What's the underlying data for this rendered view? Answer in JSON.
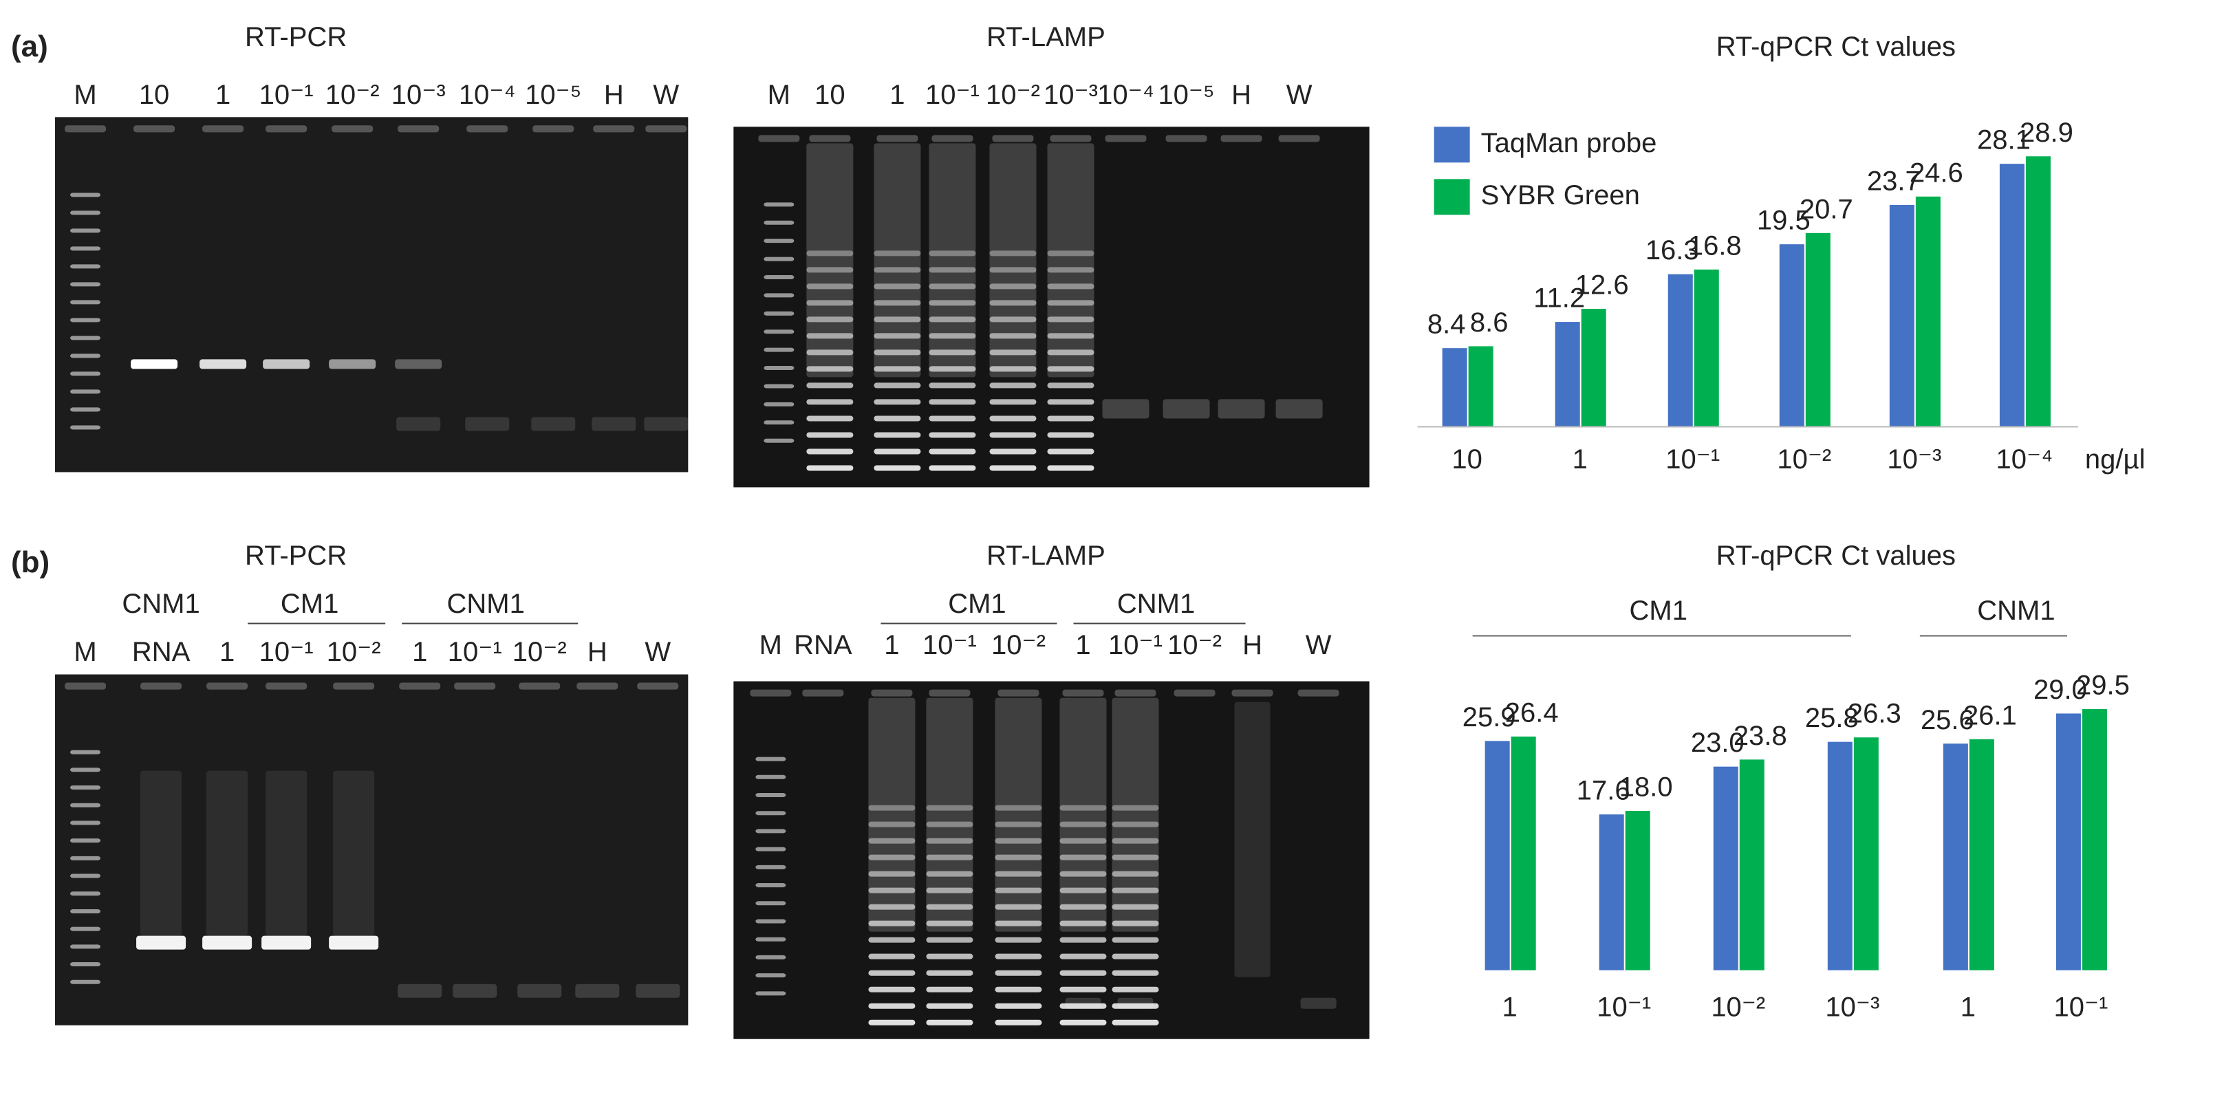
{
  "panels": [
    {
      "label": "(a)",
      "gels": [
        {
          "title": "RT-PCR",
          "lanes": [
            "M",
            "10",
            "1",
            "10⁻¹",
            "10⁻²",
            "10⁻³",
            "10⁻⁴",
            "10⁻⁵",
            "H",
            "W"
          ]
        },
        {
          "title": "RT-LAMP",
          "lanes": [
            "M",
            "10",
            "1",
            "10⁻¹",
            "10⁻²",
            "10⁻³",
            "10⁻⁴",
            "10⁻⁵",
            "H",
            "W"
          ]
        }
      ]
    },
    {
      "label": "(b)",
      "gels": [
        {
          "title": "RT-PCR",
          "groups": [
            "CNM1",
            "CM1",
            "CNM1"
          ],
          "lanes": [
            "M",
            "RNA",
            "1",
            "10⁻¹",
            "10⁻²",
            "1",
            "10⁻¹",
            "10⁻²",
            "H",
            "W"
          ]
        },
        {
          "title": "RT-LAMP",
          "groups": [
            "CM1",
            "CNM1"
          ],
          "lanes": [
            "M",
            "RNA",
            "1",
            "10⁻¹",
            "10⁻²",
            "1",
            "10⁻¹",
            "10⁻²",
            "H",
            "W"
          ]
        }
      ]
    }
  ],
  "chart_data": [
    {
      "type": "bar",
      "title": "RT-qPCR Ct values",
      "categories": [
        "10",
        "1",
        "10⁻¹",
        "10⁻²",
        "10⁻³",
        "10⁻⁴"
      ],
      "unit": "ng/µl",
      "series": [
        {
          "name": "TaqMan probe",
          "color": "#4472c4",
          "values": [
            8.4,
            11.2,
            16.3,
            19.5,
            23.7,
            28.1
          ]
        },
        {
          "name": "SYBR Green",
          "color": "#00b050",
          "values": [
            8.6,
            12.6,
            16.8,
            20.7,
            24.6,
            28.9
          ]
        }
      ],
      "ylim": [
        0,
        30
      ],
      "legend": "top-left"
    },
    {
      "type": "bar",
      "title": "RT-qPCR Ct values",
      "groups": [
        "CM1",
        "CNM1"
      ],
      "categories": [
        "1",
        "10⁻¹",
        "10⁻²",
        "10⁻³",
        "1",
        "10⁻¹"
      ],
      "series": [
        {
          "color": "#4472c4",
          "values": [
            25.9,
            17.6,
            23.0,
            25.8,
            25.6,
            29.0
          ],
          "value_labels": [
            "25.9",
            "17.6",
            "23.0",
            "25.8",
            "25.6",
            "29.0"
          ]
        },
        {
          "color": "#00b050",
          "values": [
            26.4,
            18.0,
            23.8,
            26.3,
            26.1,
            29.5
          ],
          "value_labels": [
            "26.4",
            "18.0",
            "23.8",
            "26.3",
            "26.1",
            "29.5"
          ]
        }
      ],
      "ylim": [
        0,
        30
      ]
    }
  ]
}
